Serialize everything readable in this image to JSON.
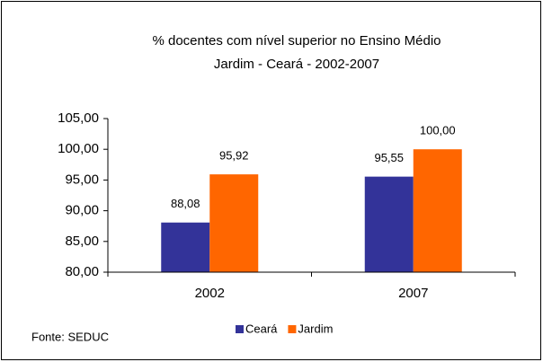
{
  "chart_data": {
    "type": "bar",
    "title": [
      "% docentes com nível superior no Ensino Médio",
      "Jardim - Ceará - 2002-2007"
    ],
    "categories": [
      "2002",
      "2007"
    ],
    "series": [
      {
        "name": "Ceará",
        "color": "#333399",
        "values": [
          88.08,
          95.55
        ],
        "value_labels": [
          "88,08",
          "95,55"
        ]
      },
      {
        "name": "Jardim",
        "color": "#ff6600",
        "values": [
          95.92,
          100
        ],
        "value_labels": [
          "95,92",
          "100,00"
        ]
      }
    ],
    "ylim": [
      80,
      105
    ],
    "yticks": [
      {
        "value": 80,
        "label": "80,00"
      },
      {
        "value": 85,
        "label": "85,00"
      },
      {
        "value": 90,
        "label": "90,00"
      },
      {
        "value": 95,
        "label": "95,00"
      },
      {
        "value": 100,
        "label": "100,00"
      },
      {
        "value": 105,
        "label": "105,00"
      }
    ],
    "grid": false,
    "legend": "bottom",
    "source": "Fonte: SEDUC"
  }
}
